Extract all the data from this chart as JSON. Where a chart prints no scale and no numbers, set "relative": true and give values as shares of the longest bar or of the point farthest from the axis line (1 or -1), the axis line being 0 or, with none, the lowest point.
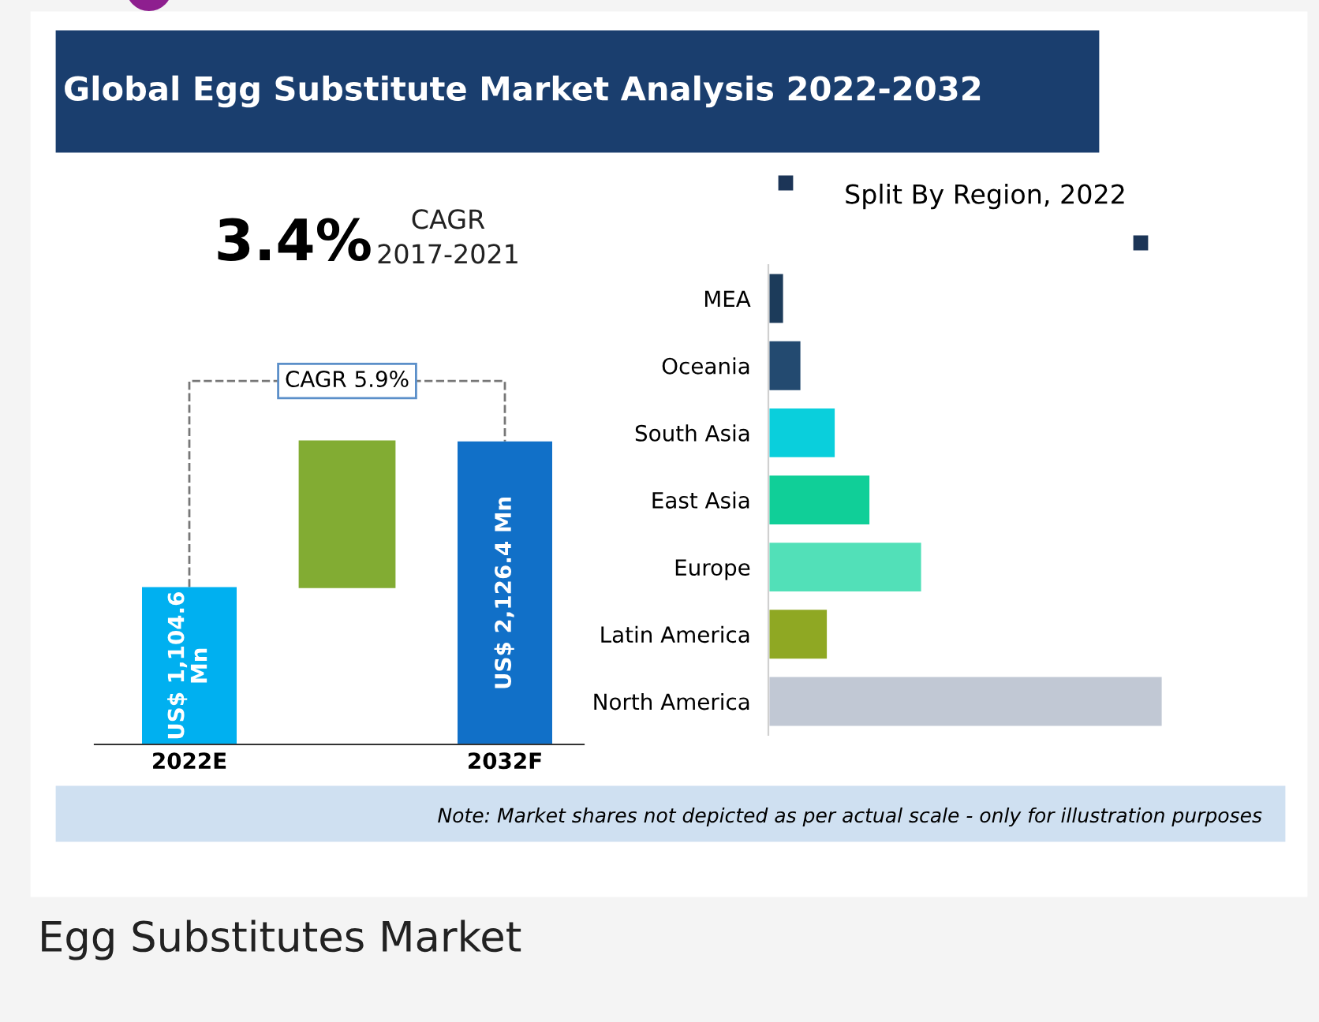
{
  "chart_data": [
    {
      "type": "bar",
      "title": "Global Egg Substitute Market Analysis 2022-2032",
      "tick_labels": "x",
      "categories": [
        "2022E",
        null,
        "2032F"
      ],
      "values": [
        1104.6,
        null,
        2126.4
      ],
      "colors": [
        "#00b0f0",
        null,
        "#1170c8"
      ],
      "value_labels": [
        "US$ 1,104.6 Mn",
        null,
        "US$ 2,126.4 Mn"
      ],
      "annotations": [
        "3.4%",
        "CAGR",
        "2017-2021",
        "CAGR 5.9%",
        "Egg Substitutes Market"
      ]
    },
    {
      "type": "bar",
      "title": "Split By Region, 2022",
      "orientation": "horizontal",
      "relative": true,
      "tick_labels": "y",
      "categories": [
        "MEA",
        "Oceania",
        "South Asia",
        "East Asia",
        "Europe",
        "Latin America",
        "North America"
      ],
      "values": [
        0.04,
        0.084,
        0.171,
        0.259,
        0.39,
        0.151,
        1.0
      ],
      "colors": [
        "#1c3b5a",
        "#234a70",
        "#0acfdc",
        "#10cf98",
        "#52e0b8",
        "#8fa823",
        "#c1c8d4"
      ],
      "annotations": [
        "Note: Market shares not depicted as per actual scale - only for illustration purposes"
      ]
    }
  ]
}
